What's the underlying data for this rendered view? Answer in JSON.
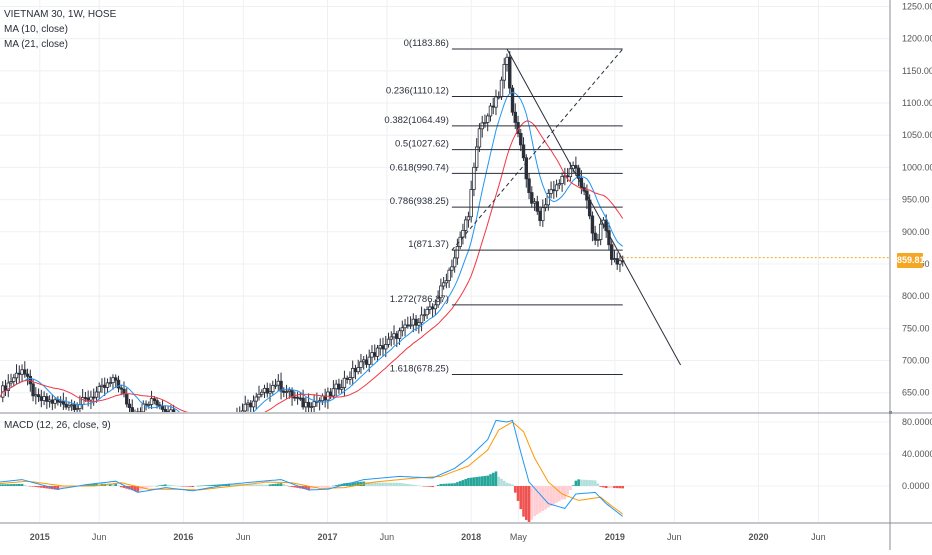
{
  "header": {
    "symbol_line": "VIETNAM 30, 1W, HOSE",
    "ma10_label": "MA (10, close)",
    "ma21_label": "MA (21, close)",
    "macd_label": "MACD (12, 26, close, 9)"
  },
  "last_price": "859.81",
  "colors": {
    "up": "#2a2e39",
    "down": "#2a2e39",
    "ma10": "#2196f3",
    "ma21": "#f23645",
    "macd_line": "#2196f3",
    "signal_line": "#ff9800",
    "hist_pos": "#26a69a",
    "hist_pos_light": "#b2dfdb",
    "hist_neg": "#ef5350",
    "hist_neg_light": "#ffcdd2",
    "price_tag": "#f5a623",
    "grid": "#eef0f3",
    "axis_text": "#555555"
  },
  "chart_data": [
    {
      "type": "candlestick",
      "title": "VIETNAM 30, 1W, HOSE",
      "ylim": [
        620,
        1260
      ],
      "y_ticks": [
        650,
        700,
        750,
        800,
        850,
        900,
        950,
        1000,
        1050,
        1100,
        1150,
        1200,
        1250
      ],
      "y_tick_labels": [
        "650.00",
        "700.00",
        "750.00",
        "800.00",
        "850.00",
        "900.00",
        "950.00",
        "1000.00",
        "1050.00",
        "1100.00",
        "1150.00",
        "1200.00",
        "1250.00"
      ],
      "x_range": [
        "2014-09-22",
        "2020-11-30"
      ],
      "x_ticks": [
        {
          "date": "2015-01-01",
          "label": "2015"
        },
        {
          "date": "2015-06-01",
          "label": "Jun"
        },
        {
          "date": "2016-01-01",
          "label": "2016"
        },
        {
          "date": "2016-06-01",
          "label": "Jun"
        },
        {
          "date": "2017-01-01",
          "label": "2017"
        },
        {
          "date": "2017-06-01",
          "label": "Jun"
        },
        {
          "date": "2018-01-01",
          "label": "2018"
        },
        {
          "date": "2018-05-01",
          "label": "May"
        },
        {
          "date": "2019-01-01",
          "label": "2019"
        },
        {
          "date": "2019-06-01",
          "label": "Jun"
        },
        {
          "date": "2020-01-01",
          "label": "2020"
        },
        {
          "date": "2020-06-01",
          "label": "Jun"
        }
      ],
      "close_keypoints": [
        [
          "2014-09-22",
          650
        ],
        [
          "2014-11-17",
          688
        ],
        [
          "2014-12-22",
          640
        ],
        [
          "2015-04-06",
          630
        ],
        [
          "2015-07-13",
          670
        ],
        [
          "2015-08-24",
          618
        ],
        [
          "2015-10-19",
          638
        ],
        [
          "2016-01-11",
          600
        ],
        [
          "2016-04-25",
          605
        ],
        [
          "2016-07-04",
          640
        ],
        [
          "2016-08-22",
          665
        ],
        [
          "2016-10-31",
          632
        ],
        [
          "2016-12-26",
          640
        ],
        [
          "2017-03-20",
          690
        ],
        [
          "2017-06-26",
          740
        ],
        [
          "2017-09-25",
          780
        ],
        [
          "2017-11-20",
          860
        ],
        [
          "2017-12-25",
          930
        ],
        [
          "2018-01-22",
          1060
        ],
        [
          "2018-03-12",
          1110
        ],
        [
          "2018-04-02",
          1178
        ],
        [
          "2018-04-16",
          1080
        ],
        [
          "2018-05-07",
          1040
        ],
        [
          "2018-05-28",
          960
        ],
        [
          "2018-06-25",
          920
        ],
        [
          "2018-07-16",
          960
        ],
        [
          "2018-08-27",
          985
        ],
        [
          "2018-09-24",
          1000
        ],
        [
          "2018-10-22",
          945
        ],
        [
          "2018-11-12",
          880
        ],
        [
          "2018-12-03",
          920
        ],
        [
          "2018-12-24",
          860
        ],
        [
          "2019-01-07",
          850
        ],
        [
          "2019-01-21",
          860
        ]
      ],
      "series": [
        {
          "name": "MA (10, close)",
          "color": "#2196f3"
        },
        {
          "name": "MA (21, close)",
          "color": "#f23645"
        }
      ],
      "annotations": {
        "fibonacci": [
          {
            "label": "0(1183.86)",
            "level": 1183.86
          },
          {
            "label": "0.236(1110.12)",
            "level": 1110.12
          },
          {
            "label": "0.382(1064.49)",
            "level": 1064.49
          },
          {
            "label": "0.5(1027.62)",
            "level": 1027.62
          },
          {
            "label": "0.618(990.74)",
            "level": 990.74
          },
          {
            "label": "0.786(938.25)",
            "level": 938.25
          },
          {
            "label": "1(871.37)",
            "level": 871.37
          },
          {
            "label": "1.272(786.37)",
            "level": 786.37
          },
          {
            "label": "1.618(678.25)",
            "level": 678.25
          }
        ],
        "fib_x_range": [
          "2017-11-13",
          "2019-01-21"
        ],
        "fib_anchor_line": [
          [
            "2017-11-13",
            871.37
          ],
          [
            "2019-01-21",
            1183.86
          ]
        ],
        "trend_line": [
          [
            "2018-04-02",
            1183.86
          ],
          [
            "2019-06-17",
            693
          ]
        ]
      },
      "last_value": 859.81
    },
    {
      "type": "macd",
      "title": "MACD (12, 26, close, 9)",
      "ylim": [
        -45,
        90
      ],
      "y_ticks": [
        0,
        40,
        80
      ],
      "y_tick_labels": [
        "0.0000",
        "40.0000",
        "80.0000"
      ],
      "macd_keypoints": [
        [
          "2014-09-22",
          5
        ],
        [
          "2014-11-17",
          8
        ],
        [
          "2015-02-16",
          -4
        ],
        [
          "2015-05-04",
          2
        ],
        [
          "2015-07-13",
          6
        ],
        [
          "2015-09-07",
          -8
        ],
        [
          "2015-11-16",
          -2
        ],
        [
          "2016-01-25",
          -6
        ],
        [
          "2016-04-25",
          2
        ],
        [
          "2016-07-18",
          6
        ],
        [
          "2016-09-05",
          8
        ],
        [
          "2016-11-14",
          -5
        ],
        [
          "2017-01-02",
          -4
        ],
        [
          "2017-04-03",
          8
        ],
        [
          "2017-07-03",
          12
        ],
        [
          "2017-09-25",
          10
        ],
        [
          "2017-11-20",
          22
        ],
        [
          "2017-12-25",
          35
        ],
        [
          "2018-02-12",
          58
        ],
        [
          "2018-03-05",
          82
        ],
        [
          "2018-04-02",
          80
        ],
        [
          "2018-04-16",
          82
        ],
        [
          "2018-05-07",
          42
        ],
        [
          "2018-05-28",
          5
        ],
        [
          "2018-07-16",
          -22
        ],
        [
          "2018-08-27",
          -28
        ],
        [
          "2018-09-24",
          -10
        ],
        [
          "2018-11-12",
          -8
        ],
        [
          "2018-12-10",
          -22
        ],
        [
          "2019-01-21",
          -38
        ]
      ],
      "signal_keypoints": [
        [
          "2014-09-22",
          3
        ],
        [
          "2014-12-01",
          6
        ],
        [
          "2015-03-02",
          0
        ],
        [
          "2015-05-18",
          0
        ],
        [
          "2015-07-27",
          4
        ],
        [
          "2015-10-05",
          -4
        ],
        [
          "2015-12-14",
          -4
        ],
        [
          "2016-02-08",
          -5
        ],
        [
          "2016-05-09",
          0
        ],
        [
          "2016-08-01",
          5
        ],
        [
          "2016-10-03",
          4
        ],
        [
          "2016-12-12",
          -3
        ],
        [
          "2017-02-13",
          -2
        ],
        [
          "2017-05-01",
          5
        ],
        [
          "2017-08-14",
          10
        ],
        [
          "2017-10-16",
          12
        ],
        [
          "2017-12-25",
          25
        ],
        [
          "2018-02-12",
          45
        ],
        [
          "2018-03-12",
          70
        ],
        [
          "2018-04-16",
          80
        ],
        [
          "2018-05-14",
          68
        ],
        [
          "2018-06-11",
          35
        ],
        [
          "2018-07-16",
          5
        ],
        [
          "2018-08-20",
          -10
        ],
        [
          "2018-10-01",
          -18
        ],
        [
          "2018-11-26",
          -14
        ],
        [
          "2018-12-24",
          -25
        ],
        [
          "2019-01-21",
          -35
        ]
      ]
    }
  ]
}
